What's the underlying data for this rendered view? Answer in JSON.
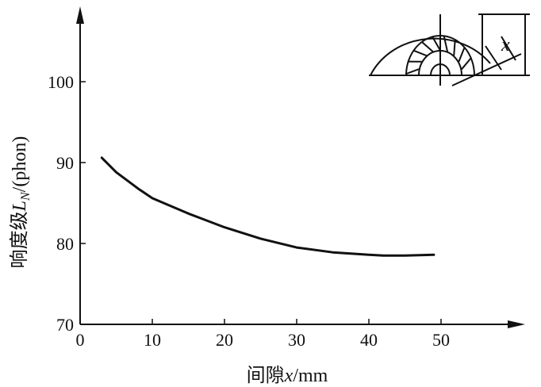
{
  "chart_data": {
    "type": "line",
    "xlabel_prefix": "间隙",
    "xlabel_var": "x",
    "xlabel_unit": "/mm",
    "ylabel_prefix": "响度级",
    "ylabel_var": "L",
    "ylabel_sub": "N",
    "ylabel_unit": "/(phon)",
    "xlim": [
      0,
      60
    ],
    "ylim": [
      70,
      110
    ],
    "x_ticks": [
      0,
      10,
      20,
      30,
      40,
      50
    ],
    "y_ticks": [
      70,
      80,
      90,
      100
    ],
    "series": [
      {
        "x": [
          3,
          5,
          8,
          10,
          15,
          20,
          25,
          30,
          35,
          40,
          42,
          45,
          49
        ],
        "y": [
          90.6,
          88.8,
          86.8,
          85.6,
          83.7,
          82.0,
          80.6,
          79.5,
          78.9,
          78.6,
          78.5,
          78.5,
          78.6
        ]
      }
    ],
    "inset_label": "x",
    "color": "#111111"
  }
}
